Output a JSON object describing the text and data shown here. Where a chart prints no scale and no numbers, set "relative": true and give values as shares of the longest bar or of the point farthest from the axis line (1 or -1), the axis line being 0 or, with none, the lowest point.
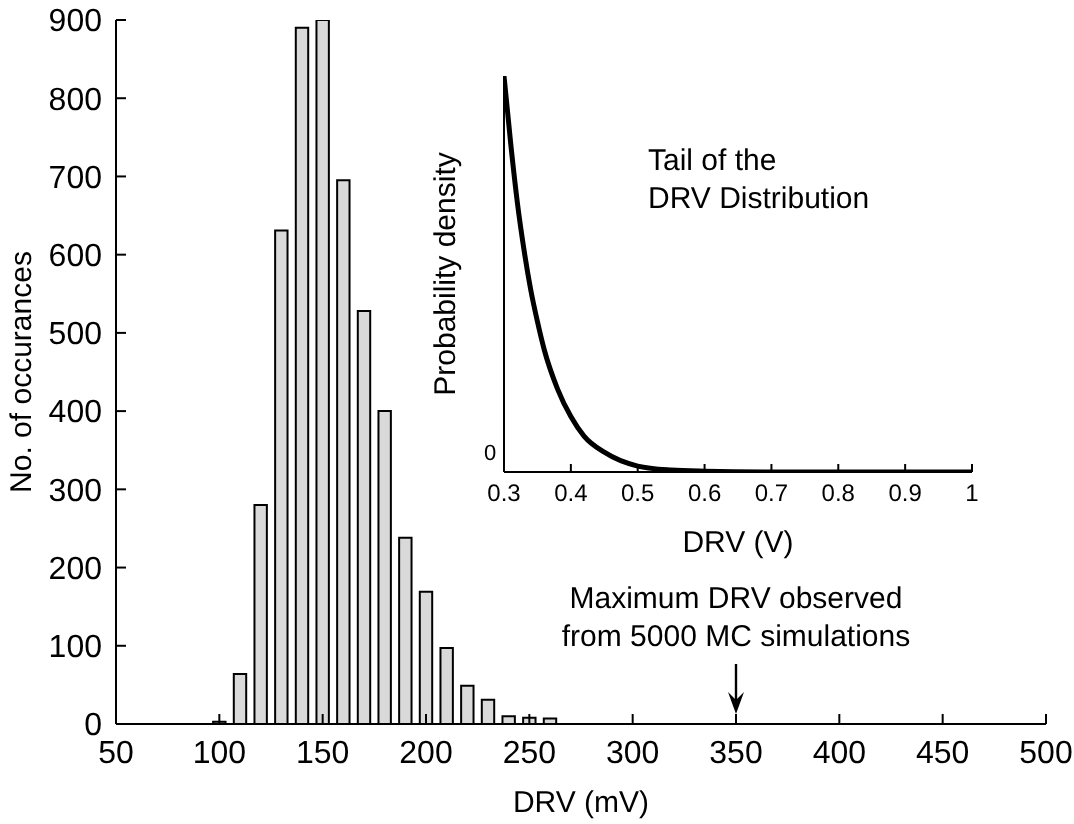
{
  "chart_data": [
    {
      "type": "histogram",
      "xlabel": "DRV (mV)",
      "ylabel": "No. of occurances",
      "color": "#d9d9d9",
      "bins": [
        95,
        105,
        115,
        125,
        135,
        145,
        155,
        165,
        175,
        185,
        195,
        205,
        215,
        225,
        235,
        245,
        255,
        265
      ],
      "values": [
        3,
        64,
        280,
        631,
        890,
        900,
        695,
        528,
        400,
        238,
        169,
        97,
        49,
        31,
        10,
        8,
        7
      ],
      "xlim": [
        50,
        500
      ],
      "xticks": [
        50,
        100,
        150,
        200,
        250,
        300,
        350,
        400,
        450,
        500
      ],
      "ylim": [
        0,
        900
      ],
      "yticks": [
        0,
        100,
        200,
        300,
        400,
        500,
        600,
        700,
        800,
        900
      ],
      "annotations": [
        "Maximum DRV observed\nfrom 5000 MC simulations"
      ]
    },
    {
      "type": "line",
      "xlabel": "DRV (V)",
      "ylabel": "Probability density",
      "relative": true,
      "x": [
        0.3,
        0.31,
        0.32,
        0.33,
        0.34,
        0.35,
        0.36,
        0.38,
        0.4,
        0.42,
        0.45,
        0.5,
        0.55,
        0.6,
        0.7,
        0.8,
        0.9,
        1
      ],
      "series": [
        {
          "color": "#000000",
          "values": [
            1,
            0.83,
            0.68,
            0.56,
            0.46,
            0.38,
            0.31,
            0.21,
            0.14,
            0.09,
            0.05,
            0.015,
            0.005,
            0.002,
            0,
            0,
            0,
            0
          ]
        }
      ],
      "xlim": [
        0.3,
        1
      ],
      "xticks": [
        0.3,
        0.4,
        0.5,
        0.6,
        0.7,
        0.8,
        0.9,
        1
      ],
      "annotations": [
        "Tail of the\nDRV Distribution",
        "0"
      ]
    }
  ]
}
